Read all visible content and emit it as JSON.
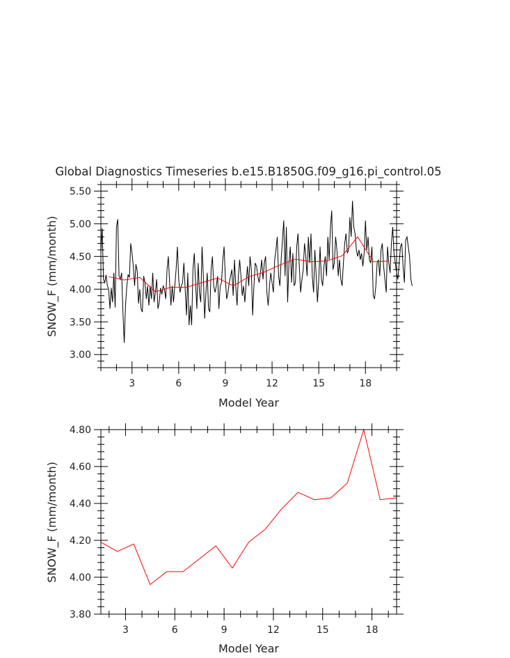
{
  "title": "Global Diagnostics Timeseries b.e15.B1850G.f09_g16.pi_control.05",
  "colors": {
    "monthly": "#000000",
    "annual": "#ff0000",
    "frame": "#000000"
  },
  "chart_data": [
    {
      "type": "line",
      "title": "Global Diagnostics Timeseries b.e15.B1850G.f09_g16.pi_control.05",
      "xlabel": "Model Year",
      "ylabel": "SNOW_F (mm/month)",
      "xlim": [
        1,
        20
      ],
      "ylim": [
        2.8,
        5.6
      ],
      "x_ticks": [
        3,
        6,
        9,
        12,
        15,
        18
      ],
      "y_ticks": [
        "3.00",
        "3.50",
        "4.00",
        "4.50",
        "5.00",
        "5.50"
      ],
      "grid": false,
      "legend": "none",
      "series": [
        {
          "color": "#000000",
          "x_start": 1.0,
          "x_step": 0.0833333,
          "values": [
            4.55,
            4.93,
            4.15,
            4.1,
            4.22,
            4.05,
            4.0,
            3.7,
            4.02,
            3.8,
            4.25,
            3.72,
            4.95,
            5.07,
            4.2,
            4.15,
            4.25,
            3.65,
            3.18,
            3.75,
            4.05,
            4.22,
            4.18,
            4.7,
            4.55,
            4.35,
            4.05,
            4.38,
            4.28,
            3.78,
            4.0,
            3.7,
            3.65,
            4.2,
            4.1,
            3.85,
            4.05,
            3.75,
            4.05,
            3.85,
            4.25,
            3.8,
            3.95,
            4.15,
            3.7,
            3.8,
            4.02,
            3.92,
            4.05,
            4.0,
            3.85,
            4.3,
            4.5,
            4.1,
            3.75,
            4.05,
            3.8,
            4.05,
            4.3,
            4.65,
            4.15,
            3.95,
            4.05,
            4.1,
            4.4,
            4.0,
            3.6,
            4.25,
            3.45,
            3.75,
            3.45,
            4.3,
            4.55,
            4.1,
            3.7,
            4.4,
            3.95,
            3.8,
            4.65,
            4.2,
            3.55,
            3.95,
            4.25,
            3.7,
            3.65,
            4.3,
            4.5,
            4.05,
            3.95,
            4.05,
            4.2,
            3.7,
            4.05,
            4.1,
            4.45,
            4.65,
            4.15,
            3.85,
            3.95,
            4.1,
            4.2,
            4.3,
            3.9,
            4.45,
            4.05,
            3.75,
            4.2,
            4.45,
            4.2,
            3.9,
            4.05,
            3.8,
            4.1,
            4.35,
            4.05,
            4.5,
            4.3,
            3.6,
            4.05,
            4.4,
            4.35,
            4.2,
            4.1,
            4.25,
            4.45,
            4.15,
            4.4,
            4.5,
            3.95,
            3.75,
            4.05,
            4.25,
            4.1,
            3.95,
            4.45,
            4.6,
            4.8,
            4.2,
            4.05,
            4.45,
            4.75,
            5.05,
            4.2,
            4.95,
            3.8,
            4.4,
            4.65,
            4.1,
            4.55,
            4.05,
            4.1,
            4.65,
            4.85,
            4.35,
            3.95,
            4.15,
            4.3,
            4.7,
            4.5,
            4.2,
            4.8,
            4.4,
            4.85,
            4.2,
            3.95,
            4.6,
            4.2,
            3.8,
            4.15,
            4.65,
            4.15,
            4.05,
            4.35,
            4.5,
            4.2,
            4.8,
            4.45,
            4.95,
            5.2,
            4.3,
            4.4,
            4.8,
            4.6,
            4.2,
            4.45,
            4.15,
            4.05,
            4.4,
            4.7,
            4.85,
            4.55,
            4.6,
            5.1,
            4.8,
            5.35,
            4.95,
            4.85,
            4.6,
            4.5,
            4.6,
            4.45,
            4.55,
            4.35,
            4.55,
            5.05,
            4.6,
            4.8,
            4.45,
            4.4,
            4.65,
            3.9,
            3.85,
            4.05,
            4.4,
            4.45,
            4.2,
            4.6,
            4.7,
            4.35,
            4.15,
            3.95,
            4.65,
            4.4,
            4.25,
            4.7,
            4.95,
            4.55,
            4.4,
            4.25,
            4.15,
            4.4,
            4.65,
            4.7,
            4.35,
            4.1,
            4.75,
            4.8,
            4.65,
            4.5,
            4.15,
            4.05
          ]
        },
        {
          "color": "#ff0000",
          "x": [
            1.5,
            2.5,
            3.5,
            4.5,
            5.5,
            6.5,
            7.5,
            8.5,
            9.5,
            10.5,
            11.5,
            12.5,
            13.5,
            14.5,
            15.5,
            16.5,
            17.5,
            18.5,
            19.5
          ],
          "values": [
            4.19,
            4.14,
            4.18,
            3.96,
            4.03,
            4.03,
            4.1,
            4.17,
            4.05,
            4.19,
            4.26,
            4.37,
            4.46,
            4.42,
            4.43,
            4.51,
            4.8,
            4.42,
            4.43
          ]
        }
      ]
    },
    {
      "type": "line",
      "xlabel": "Model Year",
      "ylabel": "SNOW_F (mm/month)",
      "xlim": [
        1.5,
        19.5
      ],
      "ylim": [
        3.8,
        4.8
      ],
      "x_ticks": [
        3,
        6,
        9,
        12,
        15,
        18
      ],
      "y_ticks": [
        "3.80",
        "4.00",
        "4.20",
        "4.40",
        "4.60",
        "4.80"
      ],
      "grid": false,
      "legend": "none",
      "series": [
        {
          "color": "#ff0000",
          "x": [
            1.5,
            2.5,
            3.5,
            4.5,
            5.5,
            6.5,
            7.5,
            8.5,
            9.5,
            10.5,
            11.5,
            12.5,
            13.5,
            14.5,
            15.5,
            16.5,
            17.5,
            18.5,
            19.5
          ],
          "values": [
            4.19,
            4.14,
            4.18,
            3.96,
            4.03,
            4.03,
            4.1,
            4.17,
            4.05,
            4.19,
            4.26,
            4.37,
            4.46,
            4.42,
            4.43,
            4.51,
            4.8,
            4.42,
            4.43
          ]
        }
      ]
    }
  ]
}
